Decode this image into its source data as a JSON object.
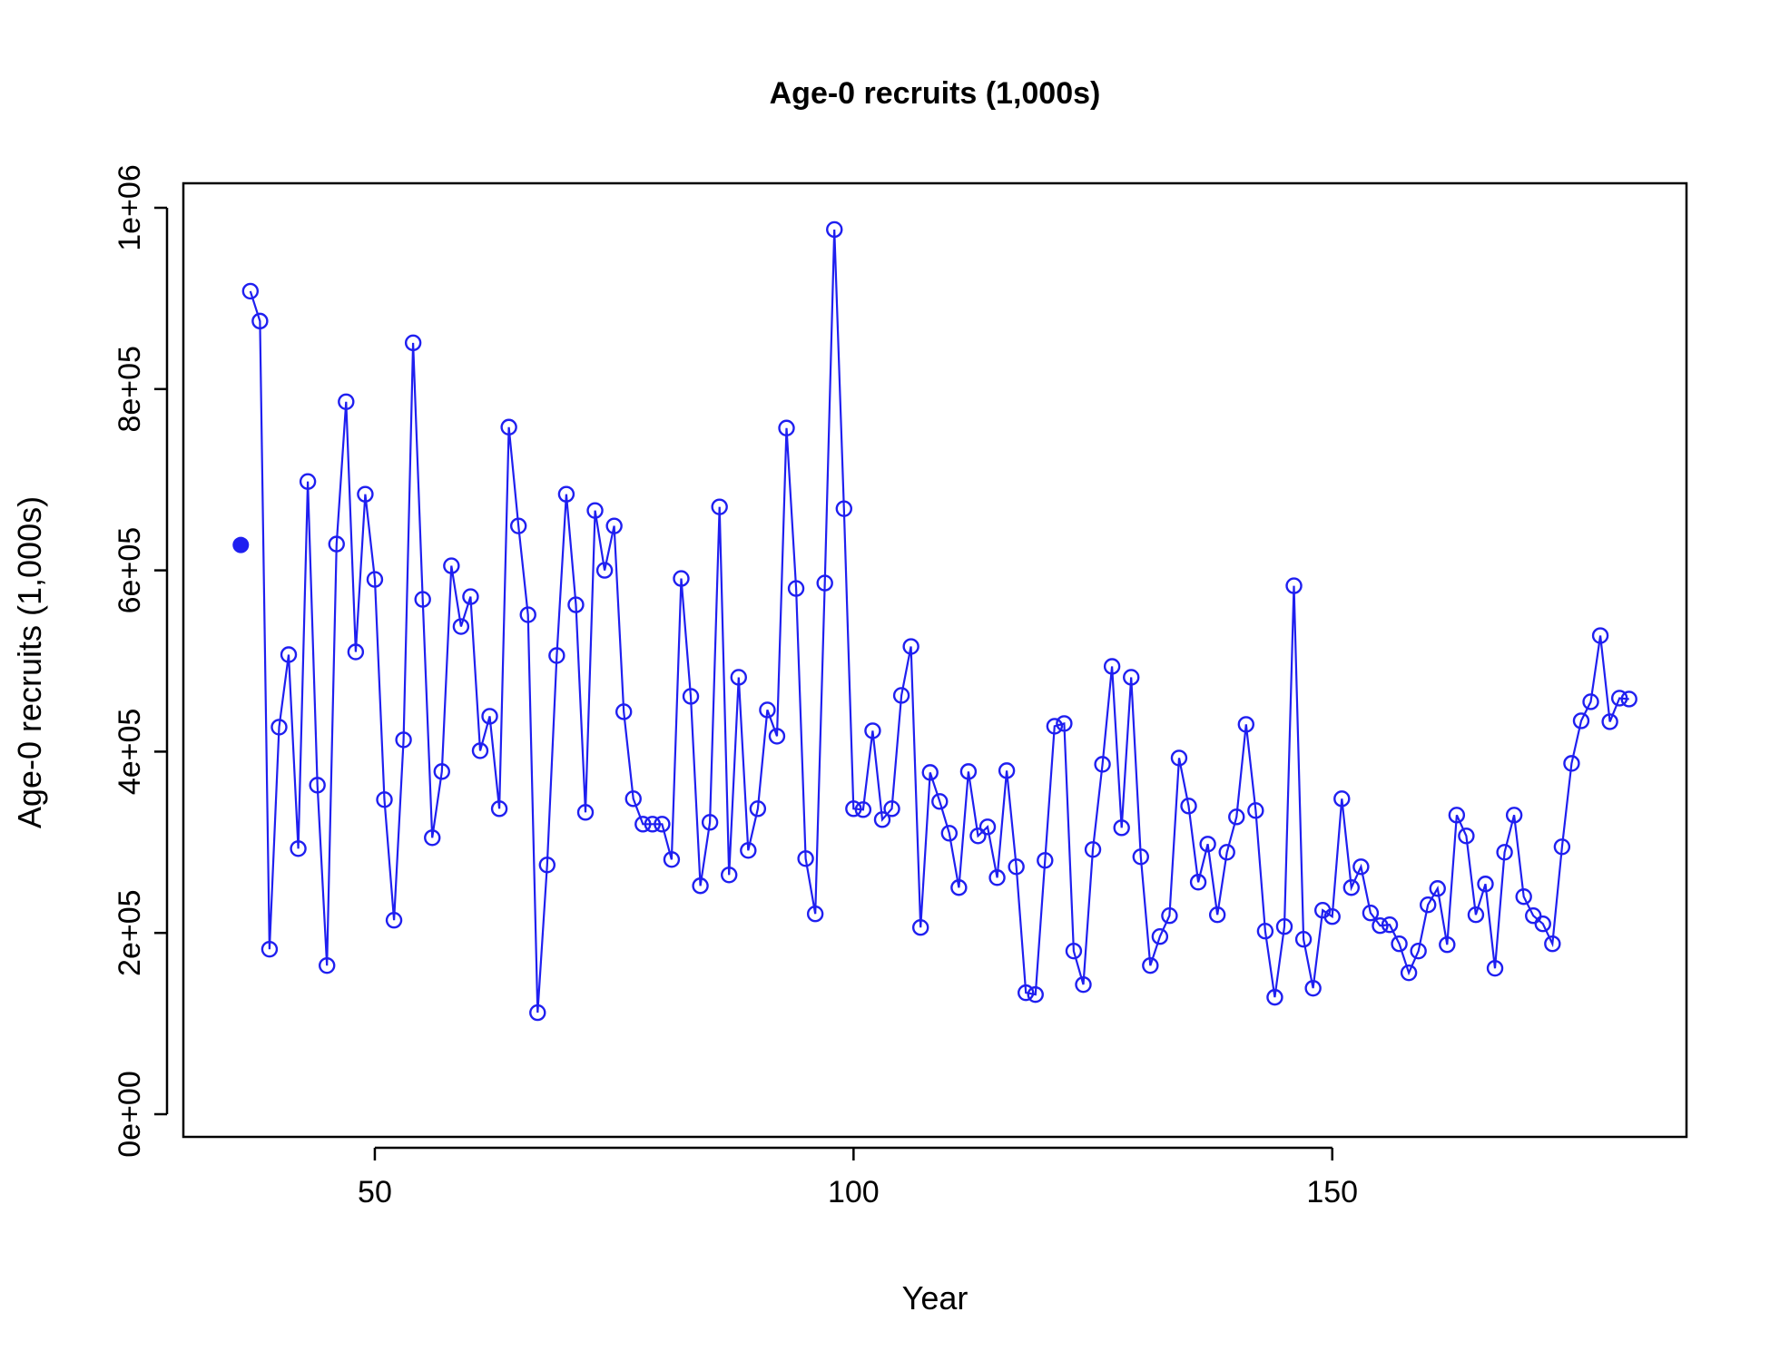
{
  "chart_data": {
    "type": "line",
    "title": "Age-0 recruits (1,000s)",
    "xlabel": "Year",
    "ylabel": "Age-0 recruits (1,000s)",
    "xlim": [
      30,
      187
    ],
    "ylim": [
      0,
      1000000
    ],
    "x_ticks": [
      50,
      100,
      150
    ],
    "x_tick_labels": [
      "50",
      "100",
      "150"
    ],
    "y_ticks": [
      0,
      200000,
      400000,
      600000,
      800000,
      1000000
    ],
    "y_tick_labels": [
      "0e+00",
      "2e+05",
      "4e+05",
      "6e+05",
      "8e+05",
      "1e+06"
    ],
    "grid": false,
    "legend": "none",
    "colors": {
      "series": "#1f1ff0",
      "axes": "#000000"
    },
    "initial_point": {
      "x": 36,
      "y": 628000,
      "marker": "filled-circle"
    },
    "series": [
      {
        "marker": "open-circle",
        "x": [
          37,
          38,
          39,
          40,
          41,
          42,
          43,
          44,
          45,
          46,
          47,
          48,
          49,
          50,
          51,
          52,
          53,
          54,
          55,
          56,
          57,
          58,
          59,
          60,
          61,
          62,
          63,
          64,
          65,
          66,
          67,
          68,
          69,
          70,
          71,
          72,
          73,
          74,
          75,
          76,
          77,
          78,
          79,
          80,
          81,
          82,
          83,
          84,
          85,
          86,
          87,
          88,
          89,
          90,
          91,
          92,
          93,
          94,
          95,
          96,
          97,
          98,
          99,
          100,
          101,
          102,
          103,
          104,
          105,
          106,
          107,
          108,
          109,
          110,
          111,
          112,
          113,
          114,
          115,
          116,
          117,
          118,
          119,
          120,
          121,
          122,
          123,
          124,
          125,
          126,
          127,
          128,
          129,
          130,
          131,
          132,
          133,
          134,
          135,
          136,
          137,
          138,
          139,
          140,
          141,
          142,
          143,
          144,
          145,
          146,
          147,
          148,
          149,
          150,
          151,
          152,
          153,
          154,
          155,
          156,
          157,
          158,
          159,
          160,
          161,
          162,
          163,
          164,
          165,
          166,
          167,
          168,
          169,
          170,
          171,
          172,
          173,
          174,
          175,
          176,
          177,
          178,
          179,
          180,
          181
        ],
        "y": [
          908000,
          875000,
          182000,
          427000,
          507000,
          293000,
          698000,
          363000,
          164000,
          629000,
          786000,
          510000,
          684000,
          590000,
          347000,
          214000,
          413000,
          851000,
          568000,
          305000,
          378000,
          605000,
          538000,
          571000,
          401000,
          439000,
          337000,
          758000,
          649000,
          551000,
          112000,
          275000,
          506000,
          684000,
          562000,
          333000,
          666000,
          600000,
          649000,
          444000,
          348000,
          320000,
          320000,
          320000,
          281000,
          591000,
          461000,
          252000,
          322000,
          670000,
          264000,
          482000,
          291000,
          337000,
          446000,
          417000,
          757000,
          580000,
          282000,
          221000,
          586000,
          976000,
          668000,
          337000,
          336000,
          423000,
          325000,
          337000,
          462000,
          516000,
          206000,
          377000,
          345000,
          310000,
          250000,
          378000,
          307000,
          317000,
          261000,
          379000,
          273000,
          134000,
          132000,
          280000,
          428000,
          431000,
          180000,
          143000,
          292000,
          386000,
          494000,
          316000,
          482000,
          284000,
          164000,
          196000,
          219000,
          393000,
          340000,
          256000,
          298000,
          220000,
          289000,
          328000,
          430000,
          335000,
          202000,
          129000,
          207000,
          583000,
          193000,
          139000,
          225000,
          218000,
          348000,
          250000,
          273000,
          222000,
          208000,
          209000,
          188000,
          156000,
          180000,
          231000,
          249000,
          187000,
          330000,
          307000,
          220000,
          254000,
          161000,
          289000,
          330000,
          240000,
          219000,
          210000,
          188000,
          295000,
          387000,
          434000,
          455000,
          528000,
          433000,
          459000,
          458000
        ]
      }
    ]
  }
}
